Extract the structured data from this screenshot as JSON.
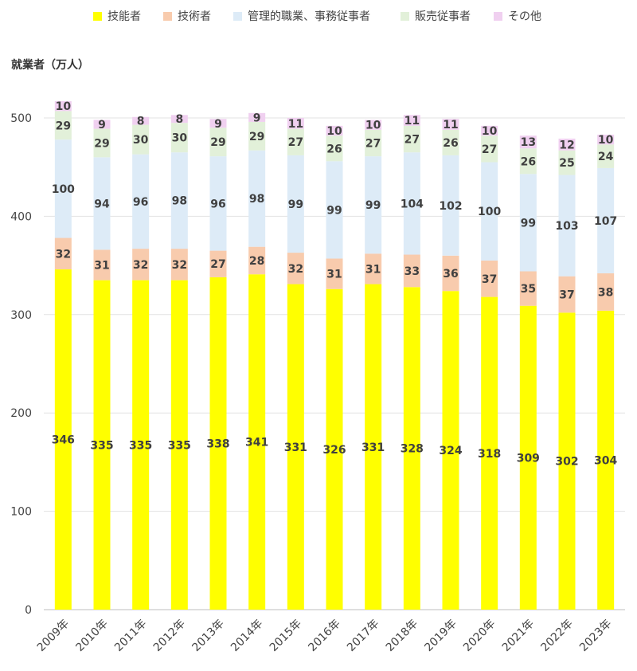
{
  "chart_data": {
    "type": "bar",
    "stacked": true,
    "categories": [
      "2009年",
      "2010年",
      "2011年",
      "2012年",
      "2013年",
      "2014年",
      "2015年",
      "2016年",
      "2017年",
      "2018年",
      "2019年",
      "2020年",
      "2021年",
      "2022年",
      "2023年"
    ],
    "series": [
      {
        "name": "技能者",
        "color": "#FFFF00",
        "values": [
          346,
          335,
          335,
          335,
          338,
          341,
          331,
          326,
          331,
          328,
          324,
          318,
          309,
          302,
          304
        ]
      },
      {
        "name": "技術者",
        "color": "#F8CBAD",
        "values": [
          32,
          31,
          32,
          32,
          27,
          28,
          32,
          31,
          31,
          33,
          36,
          37,
          35,
          37,
          38
        ]
      },
      {
        "name": "管理的職業、事務従事者",
        "color": "#DDEBF7",
        "values": [
          100,
          94,
          96,
          98,
          96,
          98,
          99,
          99,
          99,
          104,
          102,
          100,
          99,
          103,
          107
        ]
      },
      {
        "name": "販売従事者",
        "color": "#E2F0D9",
        "values": [
          29,
          29,
          30,
          30,
          29,
          29,
          27,
          26,
          27,
          27,
          26,
          27,
          26,
          25,
          24
        ]
      },
      {
        "name": "その他",
        "color": "#F0D0F0",
        "values": [
          10,
          9,
          8,
          8,
          9,
          9,
          11,
          10,
          10,
          11,
          11,
          10,
          13,
          12,
          10
        ]
      }
    ],
    "ylabel": "就業者（万人）",
    "ylim": [
      0,
      500
    ],
    "yticks": [
      "0",
      "100",
      "200",
      "300",
      "400",
      "500"
    ],
    "grid": true,
    "legend_position": "top"
  }
}
